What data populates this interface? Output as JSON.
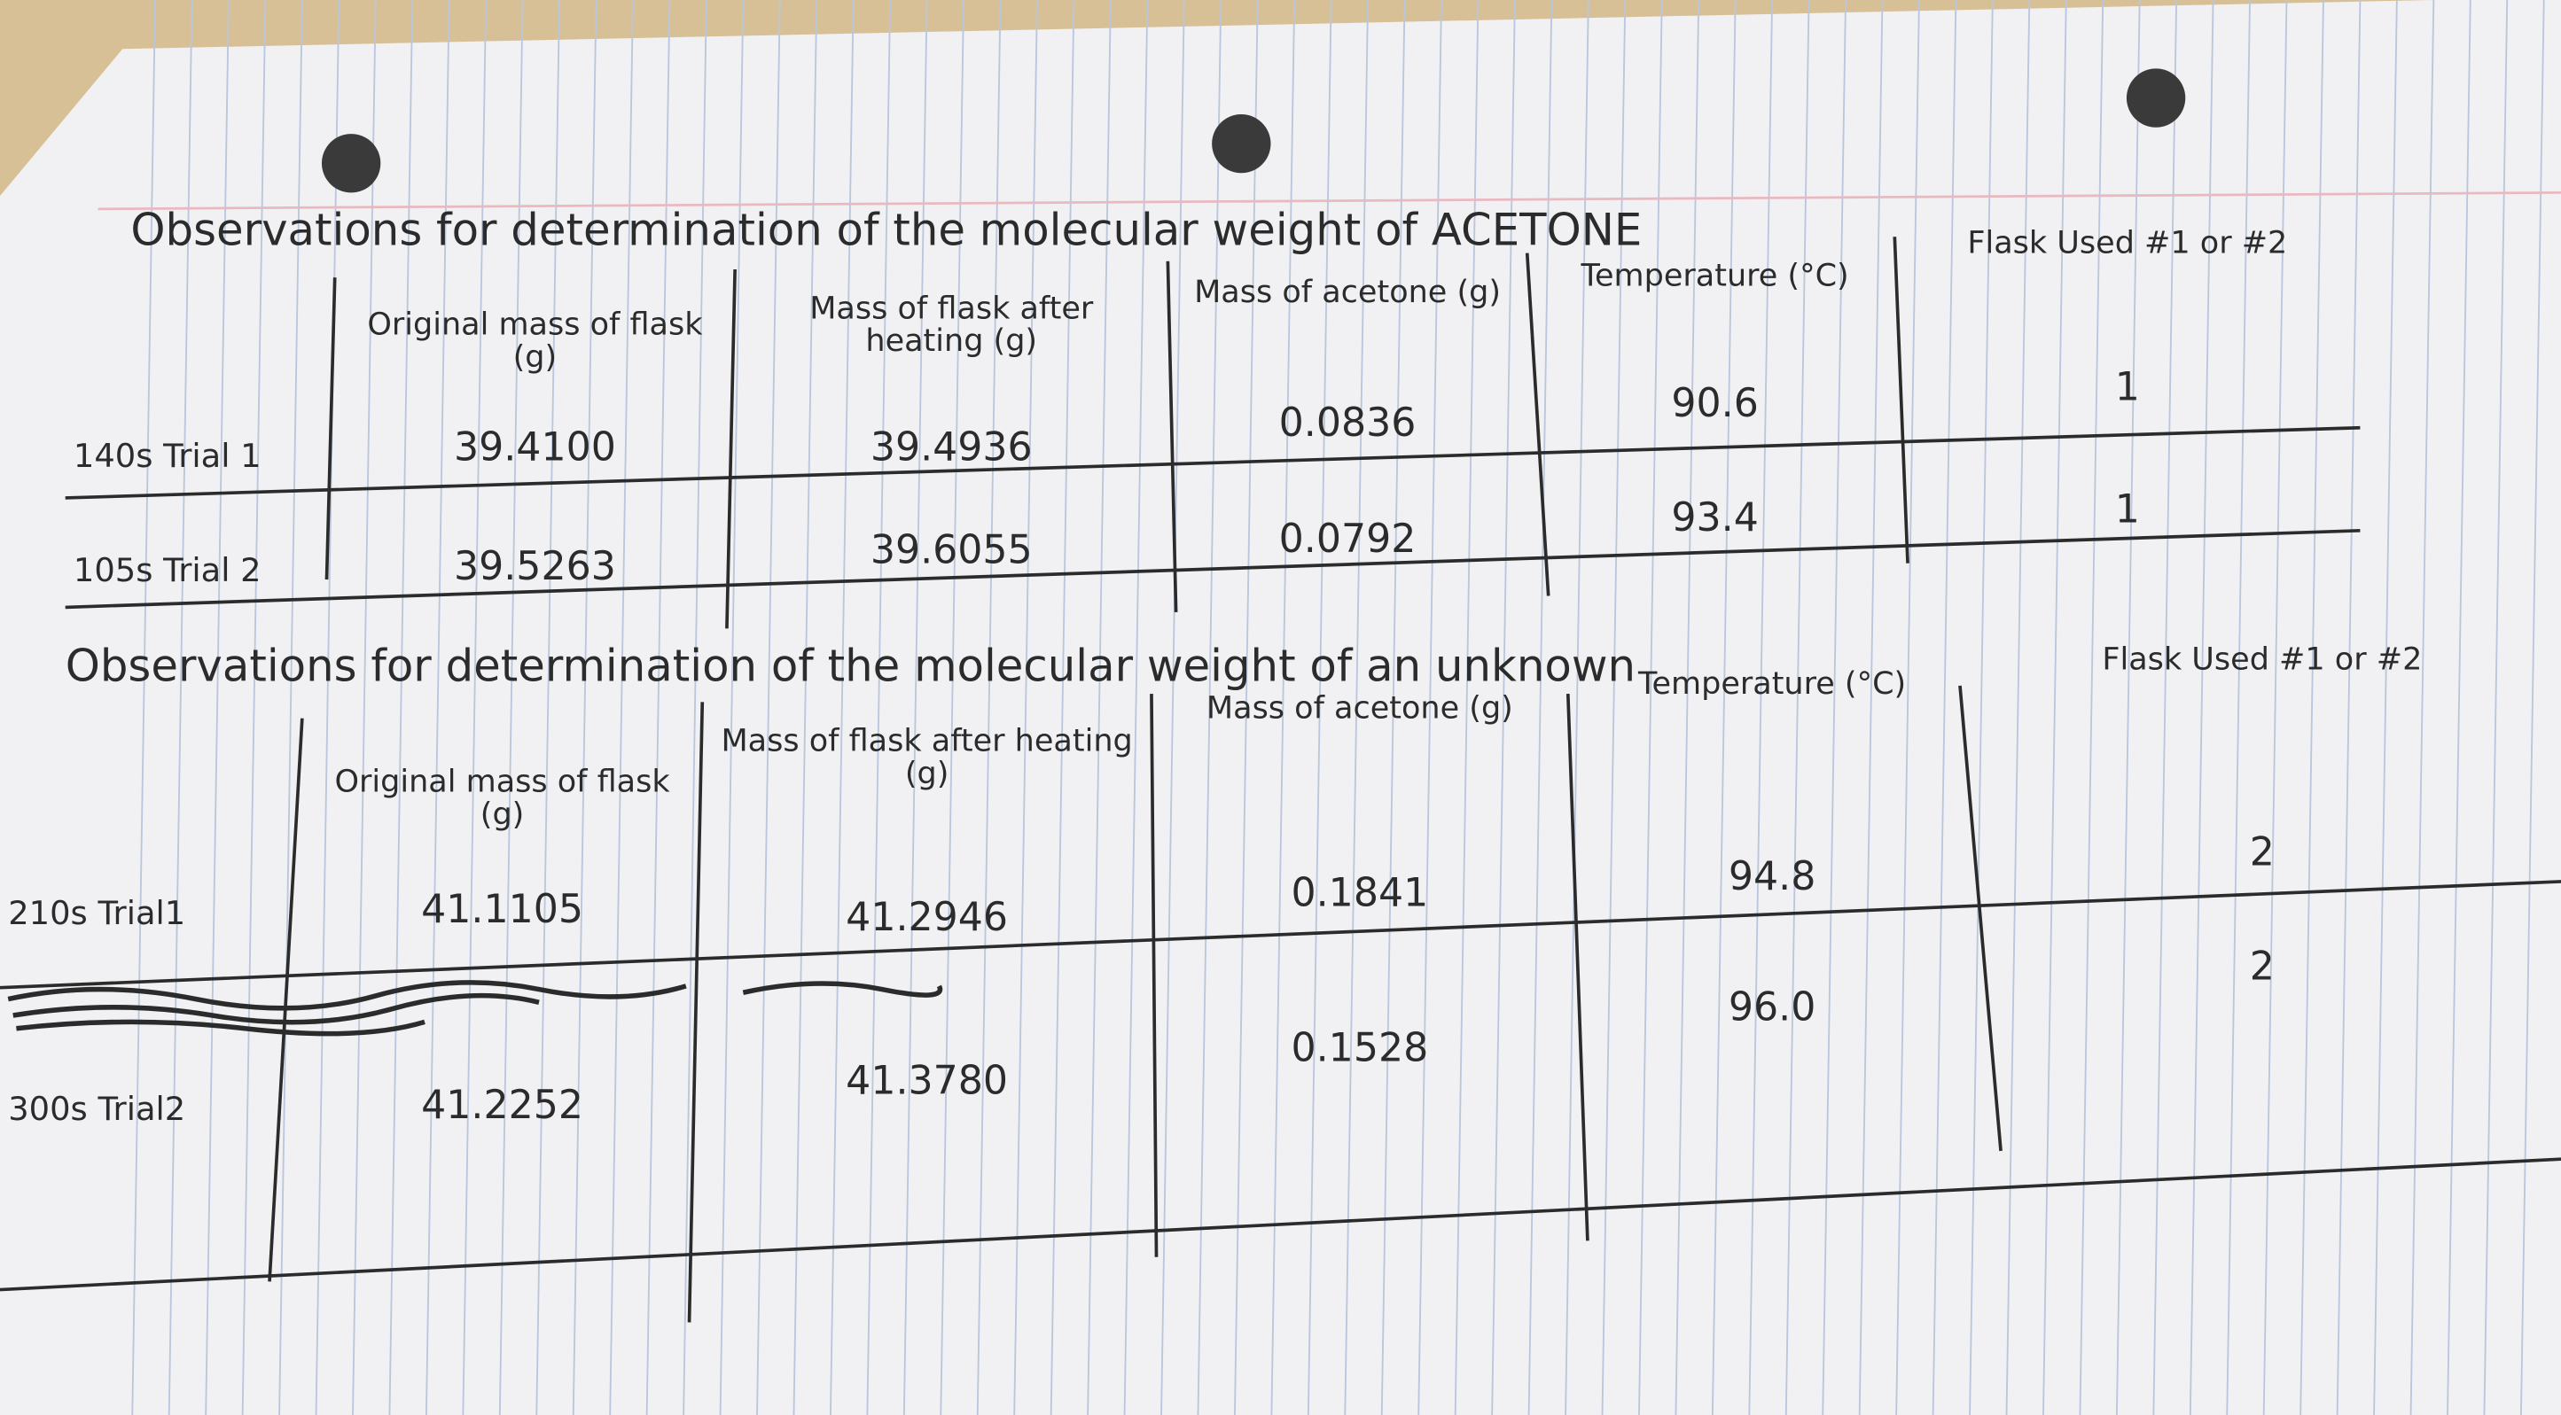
{
  "tables": [
    {
      "title": "Observations for determination of the molecular weight of ACETONE",
      "headers": [
        "Original mass of flask (g)",
        "Mass of flask after heating (g)",
        "Mass of acetone (g)",
        "Temperature (°C)",
        "Flask Used #1 or #2"
      ],
      "rows": [
        [
          "140s Trial 1",
          "39.4100",
          "39.4936",
          "0.0836",
          "90.6",
          "1"
        ],
        [
          "105s Trial 2",
          "39.5263",
          "39.6055",
          "0.0792",
          "93.4",
          "1"
        ]
      ]
    },
    {
      "title": "Observations for determination of the molecular weight of an unknown",
      "headers": [
        "Original mass of flask (g)",
        "Mass of flask after heating (g)",
        "Mass of acetone (g)",
        "Temperature (°C)",
        "Flask Used #1 or #2"
      ],
      "rows": [
        [
          "210s Trial1",
          "41.1105",
          "41.2946",
          "0.1841",
          "94.8",
          "2"
        ],
        [
          "300s Trial2",
          "41.2252",
          "41.3780",
          "0.1528",
          "96.0",
          "2"
        ]
      ]
    }
  ]
}
